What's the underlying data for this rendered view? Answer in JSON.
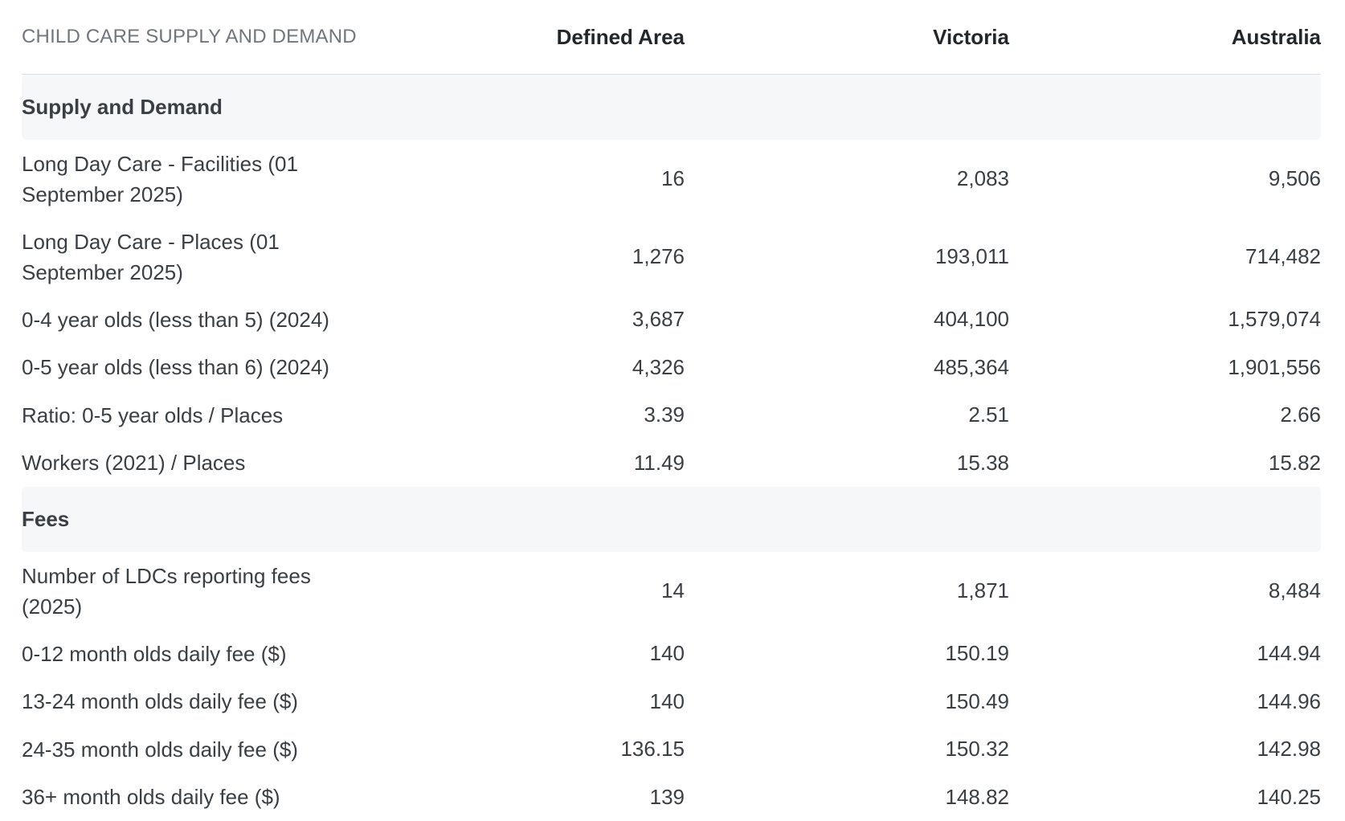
{
  "table": {
    "title": "CHILD CARE SUPPLY AND DEMAND",
    "columns": [
      "Defined Area",
      "Victoria",
      "Australia"
    ],
    "sections": [
      {
        "name": "Supply and Demand",
        "rows": [
          {
            "label": "Long Day Care - Facilities (01 September 2025)",
            "values": [
              "16",
              "2,083",
              "9,506"
            ]
          },
          {
            "label": "Long Day Care - Places (01 September 2025)",
            "values": [
              "1,276",
              "193,011",
              "714,482"
            ]
          },
          {
            "label": "0-4 year olds (less than 5) (2024)",
            "values": [
              "3,687",
              "404,100",
              "1,579,074"
            ]
          },
          {
            "label": "0-5 year olds (less than 6) (2024)",
            "values": [
              "4,326",
              "485,364",
              "1,901,556"
            ]
          },
          {
            "label": "Ratio: 0-5 year olds / Places",
            "values": [
              "3.39",
              "2.51",
              "2.66"
            ]
          },
          {
            "label": "Workers (2021) / Places",
            "values": [
              "11.49",
              "15.38",
              "15.82"
            ]
          }
        ]
      },
      {
        "name": "Fees",
        "rows": [
          {
            "label": "Number of LDCs reporting fees (2025)",
            "values": [
              "14",
              "1,871",
              "8,484"
            ]
          },
          {
            "label": "0-12 month olds daily fee ($)",
            "values": [
              "140",
              "150.19",
              "144.94"
            ]
          },
          {
            "label": "13-24 month olds daily fee ($)",
            "values": [
              "140",
              "150.49",
              "144.96"
            ]
          },
          {
            "label": "24-35 month olds daily fee ($)",
            "values": [
              "136.15",
              "150.32",
              "142.98"
            ]
          },
          {
            "label": "36+ month olds daily fee ($)",
            "values": [
              "139",
              "148.82",
              "140.25"
            ]
          }
        ]
      }
    ]
  }
}
